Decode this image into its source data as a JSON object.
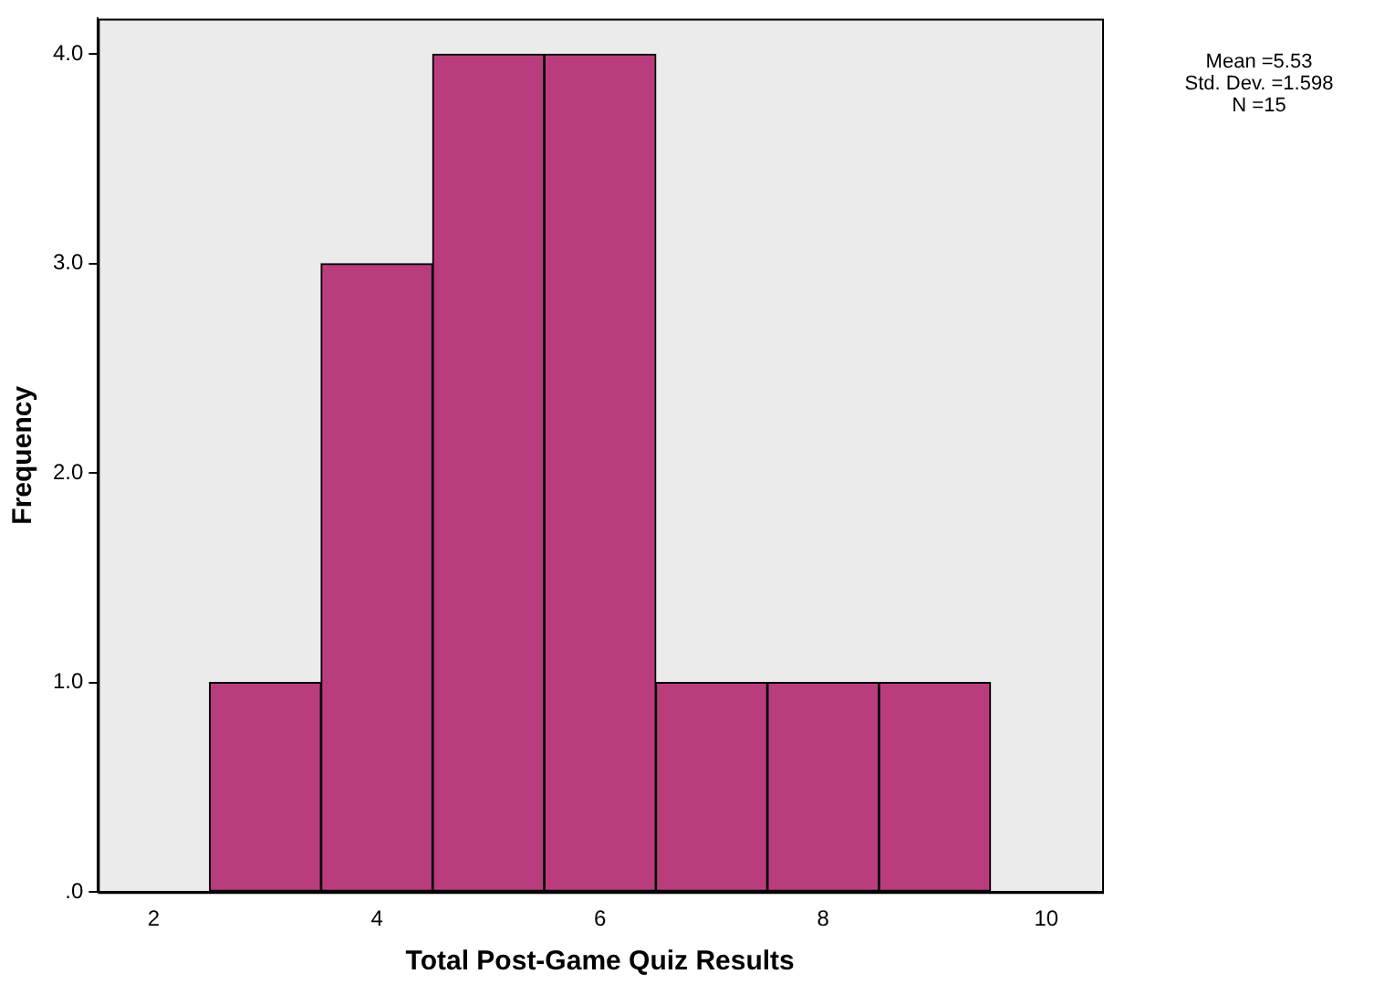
{
  "chart_data": {
    "type": "histogram",
    "xlabel": "Total Post-Game Quiz Results",
    "ylabel": "Frequency",
    "bins": [
      2.5,
      3.5,
      4.5,
      5.5,
      6.5,
      7.5,
      8.5,
      9.5
    ],
    "values": [
      1,
      3,
      4,
      4,
      1,
      1,
      1
    ],
    "color": "#b93d7c",
    "xlim": [
      1.5,
      10.5
    ],
    "xticks": [
      2,
      4,
      6,
      8,
      10
    ],
    "ylim": [
      0,
      4.17
    ],
    "yticks": [
      {
        "value": 0,
        "label": ".0"
      },
      {
        "value": 1,
        "label": "1.0"
      },
      {
        "value": 2,
        "label": "2.0"
      },
      {
        "value": 3,
        "label": "3.0"
      },
      {
        "value": 4,
        "label": "4.0"
      }
    ],
    "grid": false,
    "legend": false,
    "annotations": [
      "Mean =5.53",
      "Std. Dev. =1.598",
      "N =15"
    ]
  }
}
